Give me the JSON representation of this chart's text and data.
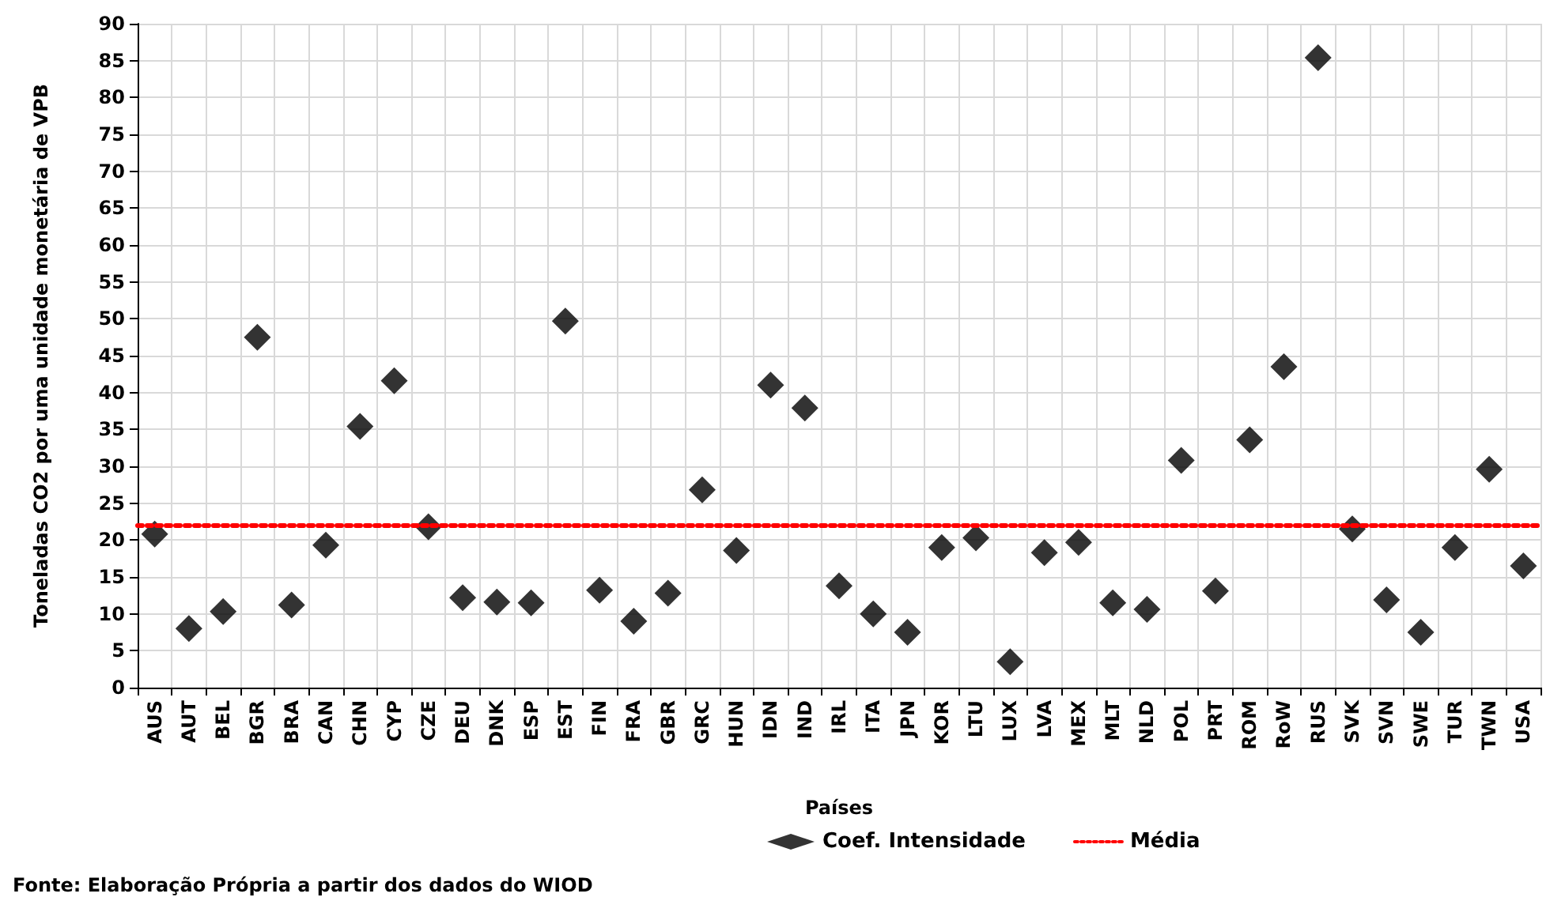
{
  "chart_data": {
    "type": "scatter",
    "xlabel": "Países",
    "ylabel": "Toneladas CO2 por uma unidade monetária de VPB",
    "categories": [
      "AUS",
      "AUT",
      "BEL",
      "BGR",
      "BRA",
      "CAN",
      "CHN",
      "CYP",
      "CZE",
      "DEU",
      "DNK",
      "ESP",
      "EST",
      "FIN",
      "FRA",
      "GBR",
      "GRC",
      "HUN",
      "IDN",
      "IND",
      "IRL",
      "ITA",
      "JPN",
      "KOR",
      "LTU",
      "LUX",
      "LVA",
      "MEX",
      "MLT",
      "NLD",
      "POL",
      "PRT",
      "ROM",
      "RoW",
      "RUS",
      "SVK",
      "SVN",
      "SWE",
      "TUR",
      "TWN",
      "USA"
    ],
    "series": [
      {
        "name": "Coef. Intensidade",
        "color": "#000000",
        "values": [
          20.8,
          8,
          10.3,
          47.5,
          11.2,
          19.3,
          35.4,
          41.6,
          21.8,
          12.2,
          11.6,
          11.5,
          49.7,
          13.2,
          9,
          12.8,
          26.8,
          18.6,
          41,
          37.9,
          13.8,
          10,
          7.5,
          19,
          20.3,
          3.5,
          18.3,
          19.7,
          11.5,
          10.6,
          30.8,
          13.1,
          33.6,
          43.5,
          85.4,
          21.5,
          11.9,
          7.5,
          19,
          29.6,
          16.5
        ]
      }
    ],
    "ref_lines": [
      {
        "axis": "y",
        "value": 22,
        "label": "Média",
        "color": "#ff0000",
        "line_style": "dotted"
      }
    ],
    "ylim": [
      0,
      90
    ],
    "yticks": [
      0,
      5,
      10,
      15,
      20,
      25,
      30,
      35,
      40,
      45,
      50,
      55,
      60,
      65,
      70,
      75,
      80,
      85,
      90
    ],
    "grid": true,
    "legend": "bottom",
    "marker": "diamond",
    "annotations": [
      "Fonte: Elaboração Própria a partir dos dados do WIOD"
    ]
  }
}
